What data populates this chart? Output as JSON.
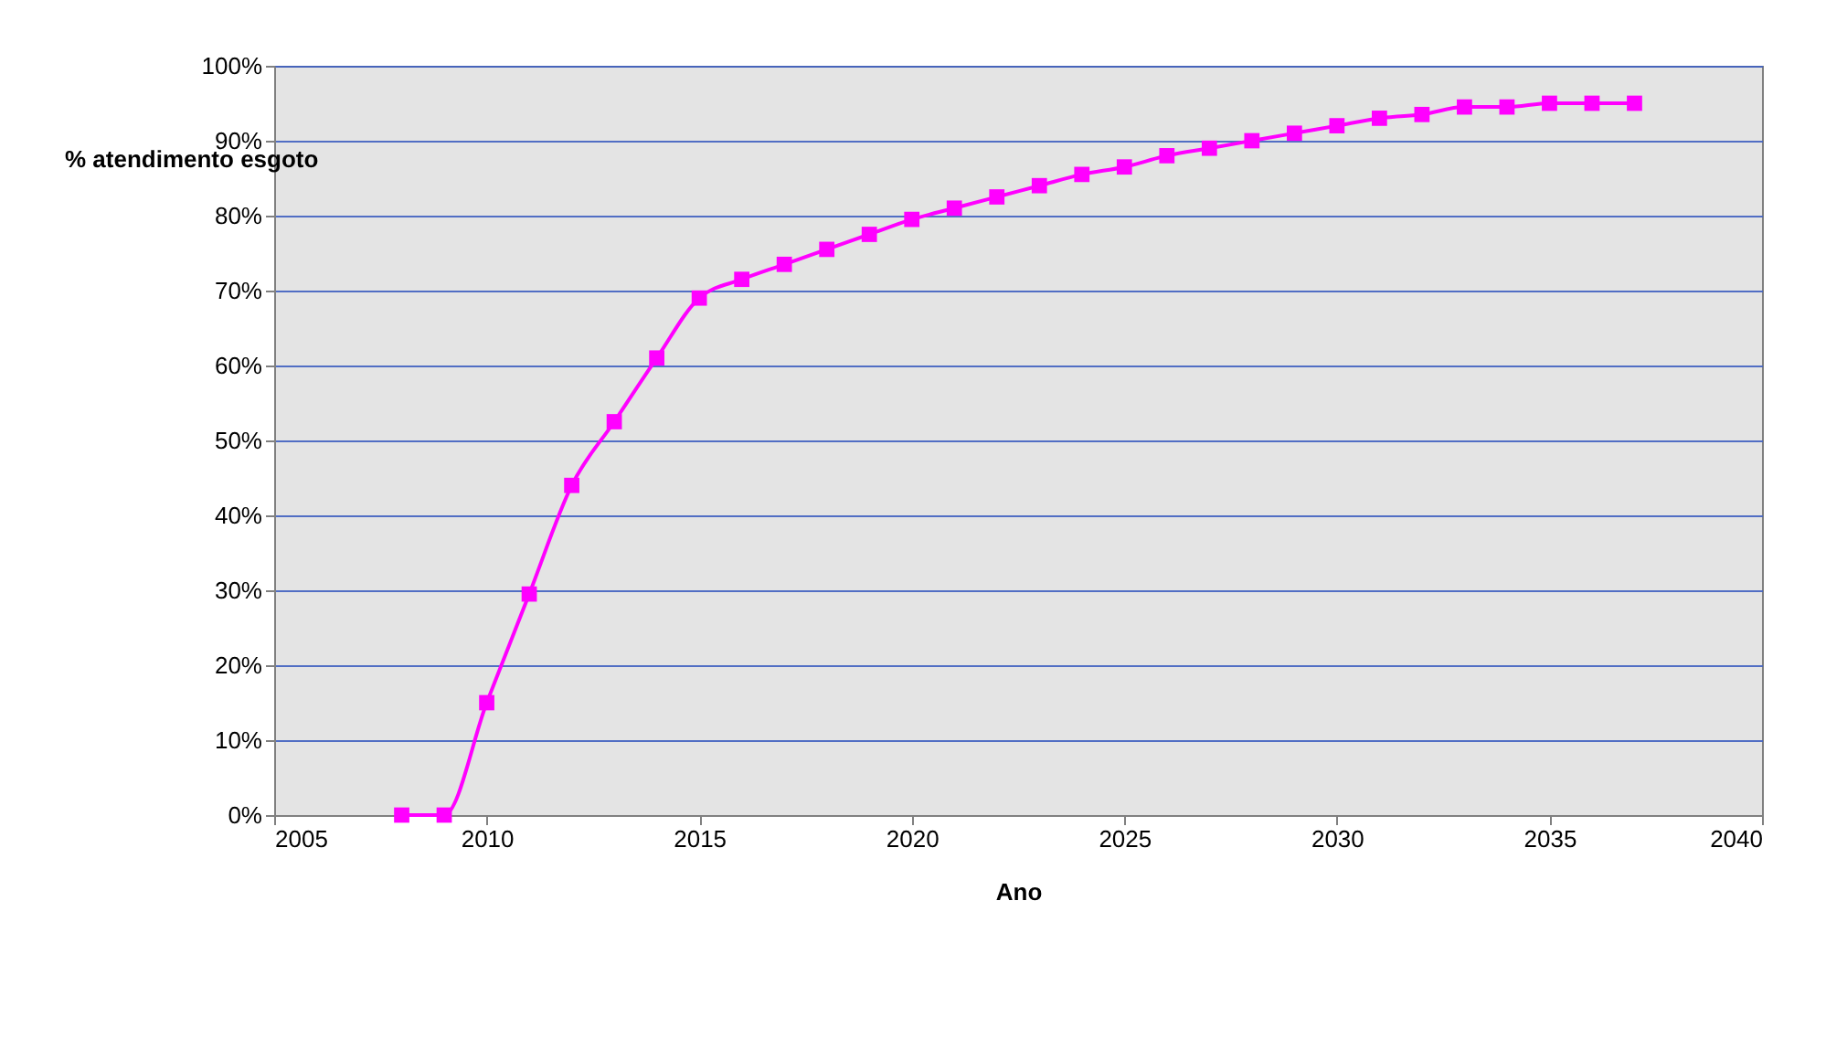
{
  "chart_data": {
    "type": "line",
    "xlabel": "Ano",
    "ylabel": "% atendimento esgoto",
    "x": [
      2008,
      2009,
      2010,
      2011,
      2012,
      2013,
      2014,
      2015,
      2016,
      2017,
      2018,
      2019,
      2020,
      2021,
      2022,
      2023,
      2024,
      2025,
      2026,
      2027,
      2028,
      2029,
      2030,
      2031,
      2032,
      2033,
      2034,
      2035,
      2036,
      2037
    ],
    "series": [
      {
        "color": "#ff00ff",
        "values": [
          0,
          0,
          15,
          29.5,
          44,
          52.5,
          61,
          69,
          71.5,
          73.5,
          75.5,
          77.5,
          79.5,
          81,
          82.5,
          84,
          85.5,
          86.5,
          88,
          89,
          90,
          91,
          92,
          93,
          93.5,
          94.5,
          94.5,
          95,
          95,
          95
        ]
      }
    ],
    "xlim": [
      2005,
      2040
    ],
    "xticks": [
      2005,
      2010,
      2015,
      2020,
      2025,
      2030,
      2035,
      2040
    ],
    "ylim": [
      0,
      100
    ],
    "yticks": [
      {
        "value": 0,
        "label": "0%"
      },
      {
        "value": 10,
        "label": "10%"
      },
      {
        "value": 20,
        "label": "20%"
      },
      {
        "value": 30,
        "label": "30%"
      },
      {
        "value": 40,
        "label": "40%"
      },
      {
        "value": 50,
        "label": "50%"
      },
      {
        "value": 60,
        "label": "60%"
      },
      {
        "value": 70,
        "label": "70%"
      },
      {
        "value": 80,
        "label": "80%"
      },
      {
        "value": 90,
        "label": "90%"
      },
      {
        "value": 100,
        "label": "100%"
      }
    ],
    "grid": "y",
    "marker": "square",
    "line_style": "solid"
  }
}
